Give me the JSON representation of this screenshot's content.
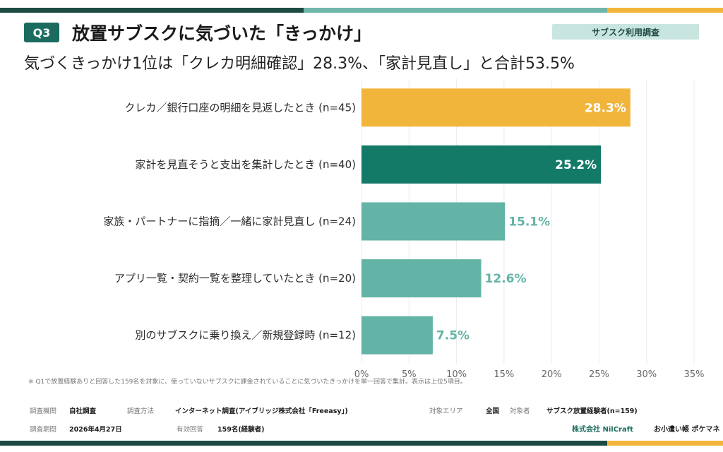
{
  "header": {
    "badge": "Q3",
    "title": "放置サブスクに気づいた「きっかけ」",
    "tag": "サブスク利用調査",
    "subtitle": "気づくきっかけ1位は「クレカ明細確認」28.3%、「家計見直し」と合計53.5%"
  },
  "colors": {
    "accent_dark": "#1d4a42",
    "accent_mid": "#6fb5aa",
    "accent_yellow": "#f2b53c",
    "bar_top": "#f2b53c",
    "bar_second": "#137a68",
    "bar_rest": "#63b4a6"
  },
  "chart_data": {
    "type": "bar",
    "orientation": "horizontal",
    "categories": [
      "クレカ／銀行口座の明細を見返したとき (n=45)",
      "家計を見直そうと支出を集計したとき (n=40)",
      "家族・パートナーに指摘／一緒に家計見直し (n=24)",
      "アプリ一覧・契約一覧を整理していたとき (n=20)",
      "別のサブスクに乗り換え／新規登録時 (n=12)"
    ],
    "values": [
      28.3,
      25.2,
      15.1,
      12.6,
      7.5
    ],
    "value_labels": [
      "28.3%",
      "25.2%",
      "15.1%",
      "12.6%",
      "7.5%"
    ],
    "xlim": [
      0,
      35
    ],
    "ticks": [
      0,
      5,
      10,
      15,
      20,
      25,
      30,
      35
    ],
    "tick_labels": [
      "0%",
      "5%",
      "10%",
      "15%",
      "20%",
      "25%",
      "30%",
      "35%"
    ],
    "grid": true
  },
  "footer": {
    "note": "※ Q1で放置経験ありと回答した159名を対象に、使っていないサブスクに課金されていることに気づいたきっかけを単一回答で集計。表示は上位5項目。",
    "org_label": "調査機関",
    "org_value": "自社調査",
    "method_label": "調査方法",
    "method_value": "インターネット調査(アイブリッジ株式会社「Freeasy」)",
    "area_label": "対象エリア",
    "area_value": "全国",
    "target_label": "対象者",
    "target_value": "サブスク放置経験者(n=159)",
    "period_label": "調査期間",
    "period_value": "2026年4月27日",
    "valid_label": "有効回答",
    "valid_value": "159名(経験者)",
    "company": "株式会社 NilCraft",
    "service": "お小遣い帳 ポケマネ"
  }
}
